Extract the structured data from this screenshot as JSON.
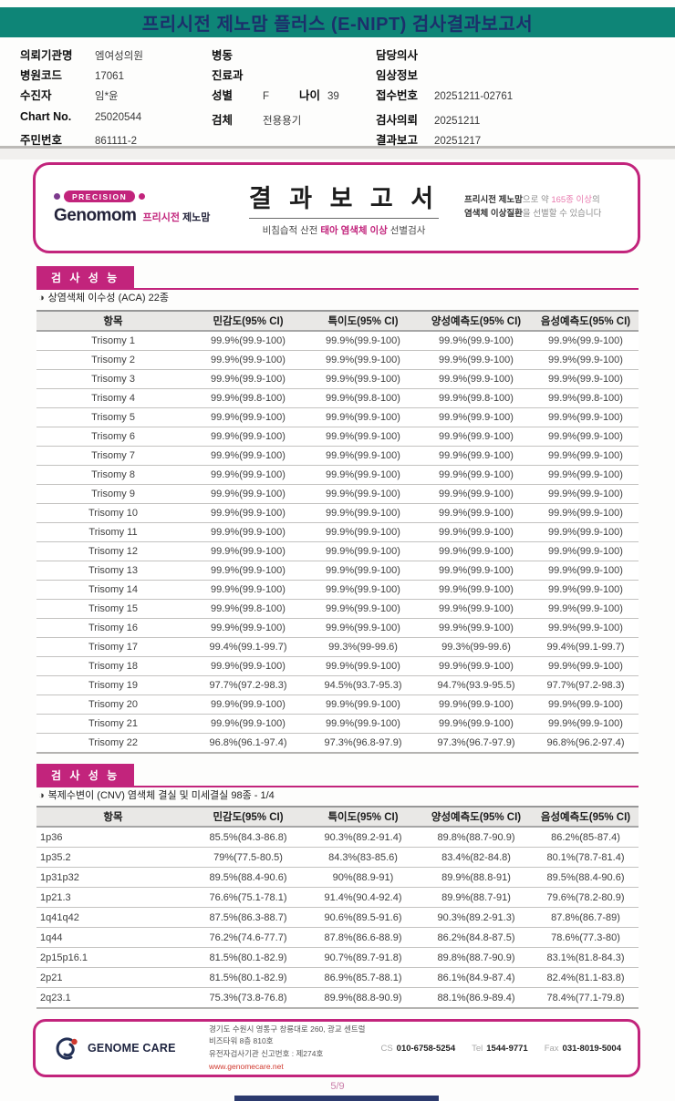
{
  "page": {
    "title": "프리시전 제노맘 플러스 (E-NIPT) 검사결과보고서",
    "page_number": "5/9"
  },
  "colors": {
    "header_teal": "#0e8577",
    "title_navy": "#1c2f6b",
    "accent_magenta": "#c2247c",
    "link_red": "#d0392f",
    "page_number_pink": "#c97ca8"
  },
  "info": {
    "columns": [
      {
        "name": "left",
        "rows": [
          {
            "pairs": [
              {
                "label": "의뢰기관명",
                "value": "엠여성의원"
              }
            ]
          },
          {
            "pairs": [
              {
                "label": "병원코드",
                "value": "17061"
              }
            ]
          },
          {
            "pairs": [
              {
                "label": "수진자",
                "value": "임*윤"
              }
            ]
          },
          {
            "gap": true,
            "pairs": [
              {
                "label": "Chart No.",
                "value": "25020544"
              }
            ]
          },
          {
            "pairs": [
              {
                "label": "주민번호",
                "value": "861111-2"
              }
            ]
          }
        ]
      },
      {
        "name": "middle",
        "rows": [
          {
            "pairs": [
              {
                "label": "병동",
                "value": ""
              }
            ]
          },
          {
            "pairs": [
              {
                "label": "진료과",
                "value": ""
              }
            ]
          },
          {
            "pairs": [
              {
                "label": "성별",
                "value": "F"
              },
              {
                "label": "나이",
                "value": "39"
              }
            ]
          },
          {
            "gap": true,
            "pairs": [
              {
                "label": "검체",
                "value": "전용용기"
              }
            ]
          }
        ]
      },
      {
        "name": "right",
        "rows": [
          {
            "pairs": [
              {
                "label": "담당의사",
                "value": ""
              }
            ]
          },
          {
            "pairs": [
              {
                "label": "임상정보",
                "value": ""
              }
            ]
          },
          {
            "pairs": [
              {
                "label": "접수번호",
                "value": "20251211-02761"
              }
            ]
          },
          {
            "gap": true,
            "pairs": [
              {
                "label": "검사의뢰",
                "value": "20251211"
              }
            ]
          },
          {
            "pairs": [
              {
                "label": "결과보고",
                "value": "20251217"
              }
            ]
          }
        ]
      }
    ]
  },
  "banner": {
    "badge": "PRECISION",
    "brand": "Genomom",
    "brand_kr_accent": "프리시전",
    "brand_kr_rest": "제노맘",
    "title": "결 과 보 고 서",
    "subtitle_prefix": "비침습적 산전 ",
    "subtitle_accent": "태아 염색체 이상",
    "subtitle_suffix": " 선별검사",
    "note": {
      "bold1": "프리시전 제노맘",
      "mid1": "으로 약 ",
      "accent": "165종 이상",
      "tail1": "의",
      "bold2": "염색체 이상질환",
      "tail2": "을 선별할 수 있습니다"
    }
  },
  "sections": [
    {
      "header": "검 사 성 능",
      "bullet": "◑",
      "subtitle": "상염색체 이수성 (ACA) 22종",
      "table": {
        "columns": [
          "항목",
          "민감도(95% CI)",
          "특이도(95% CI)",
          "양성예측도(95% CI)",
          "음성예측도(95% CI)"
        ],
        "rows": [
          [
            "Trisomy 1",
            "99.9%(99.9-100)",
            "99.9%(99.9-100)",
            "99.9%(99.9-100)",
            "99.9%(99.9-100)"
          ],
          [
            "Trisomy 2",
            "99.9%(99.9-100)",
            "99.9%(99.9-100)",
            "99.9%(99.9-100)",
            "99.9%(99.9-100)"
          ],
          [
            "Trisomy 3",
            "99.9%(99.9-100)",
            "99.9%(99.9-100)",
            "99.9%(99.9-100)",
            "99.9%(99.9-100)"
          ],
          [
            "Trisomy 4",
            "99.9%(99.8-100)",
            "99.9%(99.8-100)",
            "99.9%(99.8-100)",
            "99.9%(99.8-100)"
          ],
          [
            "Trisomy 5",
            "99.9%(99.9-100)",
            "99.9%(99.9-100)",
            "99.9%(99.9-100)",
            "99.9%(99.9-100)"
          ],
          [
            "Trisomy 6",
            "99.9%(99.9-100)",
            "99.9%(99.9-100)",
            "99.9%(99.9-100)",
            "99.9%(99.9-100)"
          ],
          [
            "Trisomy 7",
            "99.9%(99.9-100)",
            "99.9%(99.9-100)",
            "99.9%(99.9-100)",
            "99.9%(99.9-100)"
          ],
          [
            "Trisomy 8",
            "99.9%(99.9-100)",
            "99.9%(99.9-100)",
            "99.9%(99.9-100)",
            "99.9%(99.9-100)"
          ],
          [
            "Trisomy 9",
            "99.9%(99.9-100)",
            "99.9%(99.9-100)",
            "99.9%(99.9-100)",
            "99.9%(99.9-100)"
          ],
          [
            "Trisomy 10",
            "99.9%(99.9-100)",
            "99.9%(99.9-100)",
            "99.9%(99.9-100)",
            "99.9%(99.9-100)"
          ],
          [
            "Trisomy 11",
            "99.9%(99.9-100)",
            "99.9%(99.9-100)",
            "99.9%(99.9-100)",
            "99.9%(99.9-100)"
          ],
          [
            "Trisomy 12",
            "99.9%(99.9-100)",
            "99.9%(99.9-100)",
            "99.9%(99.9-100)",
            "99.9%(99.9-100)"
          ],
          [
            "Trisomy 13",
            "99.9%(99.9-100)",
            "99.9%(99.9-100)",
            "99.9%(99.9-100)",
            "99.9%(99.9-100)"
          ],
          [
            "Trisomy 14",
            "99.9%(99.9-100)",
            "99.9%(99.9-100)",
            "99.9%(99.9-100)",
            "99.9%(99.9-100)"
          ],
          [
            "Trisomy 15",
            "99.9%(99.8-100)",
            "99.9%(99.9-100)",
            "99.9%(99.9-100)",
            "99.9%(99.9-100)"
          ],
          [
            "Trisomy 16",
            "99.9%(99.9-100)",
            "99.9%(99.9-100)",
            "99.9%(99.9-100)",
            "99.9%(99.9-100)"
          ],
          [
            "Trisomy 17",
            "99.4%(99.1-99.7)",
            "99.3%(99-99.6)",
            "99.3%(99-99.6)",
            "99.4%(99.1-99.7)"
          ],
          [
            "Trisomy 18",
            "99.9%(99.9-100)",
            "99.9%(99.9-100)",
            "99.9%(99.9-100)",
            "99.9%(99.9-100)"
          ],
          [
            "Trisomy 19",
            "97.7%(97.2-98.3)",
            "94.5%(93.7-95.3)",
            "94.7%(93.9-95.5)",
            "97.7%(97.2-98.3)"
          ],
          [
            "Trisomy 20",
            "99.9%(99.9-100)",
            "99.9%(99.9-100)",
            "99.9%(99.9-100)",
            "99.9%(99.9-100)"
          ],
          [
            "Trisomy 21",
            "99.9%(99.9-100)",
            "99.9%(99.9-100)",
            "99.9%(99.9-100)",
            "99.9%(99.9-100)"
          ],
          [
            "Trisomy 22",
            "96.8%(96.1-97.4)",
            "97.3%(96.8-97.9)",
            "97.3%(96.7-97.9)",
            "96.8%(96.2-97.4)"
          ]
        ]
      }
    },
    {
      "header": "검 사 성 능",
      "bullet": "◑",
      "subtitle": "복제수변이 (CNV) 염색체 결실 및 미세결실 98종 - 1/4",
      "table": {
        "columns": [
          "항목",
          "민감도(95% CI)",
          "특이도(95% CI)",
          "양성예측도(95% CI)",
          "음성예측도(95% CI)"
        ],
        "rows": [
          [
            "1p36",
            "85.5%(84.3-86.8)",
            "90.3%(89.2-91.4)",
            "89.8%(88.7-90.9)",
            "86.2%(85-87.4)"
          ],
          [
            "1p35.2",
            "79%(77.5-80.5)",
            "84.3%(83-85.6)",
            "83.4%(82-84.8)",
            "80.1%(78.7-81.4)"
          ],
          [
            "1p31p32",
            "89.5%(88.4-90.6)",
            "90%(88.9-91)",
            "89.9%(88.8-91)",
            "89.5%(88.4-90.6)"
          ],
          [
            "1p21.3",
            "76.6%(75.1-78.1)",
            "91.4%(90.4-92.4)",
            "89.9%(88.7-91)",
            "79.6%(78.2-80.9)"
          ],
          [
            "1q41q42",
            "87.5%(86.3-88.7)",
            "90.6%(89.5-91.6)",
            "90.3%(89.2-91.3)",
            "87.8%(86.7-89)"
          ],
          [
            "1q44",
            "76.2%(74.6-77.7)",
            "87.8%(86.6-88.9)",
            "86.2%(84.8-87.5)",
            "78.6%(77.3-80)"
          ],
          [
            "2p15p16.1",
            "81.5%(80.1-82.9)",
            "90.7%(89.7-91.8)",
            "89.8%(88.7-90.9)",
            "83.1%(81.8-84.3)"
          ],
          [
            "2p21",
            "81.5%(80.1-82.9)",
            "86.9%(85.7-88.1)",
            "86.1%(84.9-87.4)",
            "82.4%(81.1-83.8)"
          ],
          [
            "2q23.1",
            "75.3%(73.8-76.8)",
            "89.9%(88.8-90.9)",
            "88.1%(86.9-89.4)",
            "78.4%(77.1-79.8)"
          ]
        ]
      }
    }
  ],
  "footer": {
    "company": "GENOME CARE",
    "address_line1": "경기도 수원시 영통구 창룡대로 260, 광교 센트럴비즈타워 8층 810호",
    "address_line2": "유전자검사기관 신고번호 : 제274호",
    "website": "www.genomecare.net",
    "contacts": [
      {
        "label": "CS",
        "value": "010-6758-5254"
      },
      {
        "label": "Tel",
        "value": "1544-9771"
      },
      {
        "label": "Fax",
        "value": "031-8019-5004"
      }
    ]
  }
}
